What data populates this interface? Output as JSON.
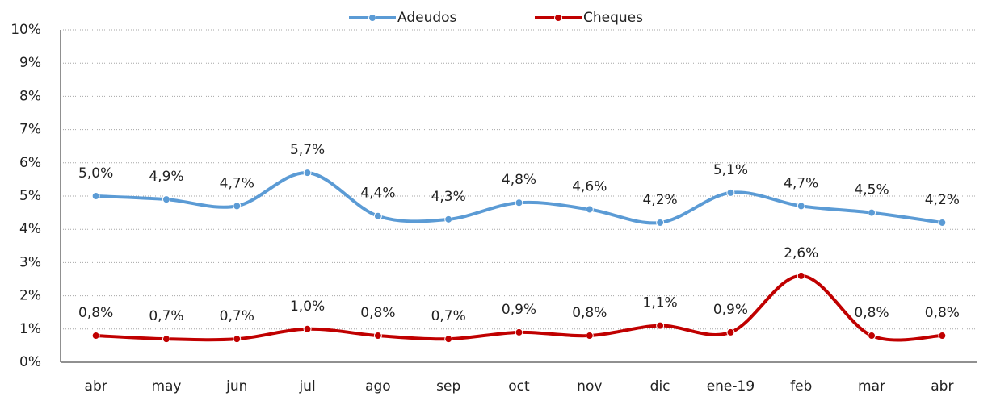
{
  "chart_data": {
    "type": "line",
    "categories": [
      "abr",
      "may",
      "jun",
      "jul",
      "ago",
      "sep",
      "oct",
      "nov",
      "dic",
      "ene-19",
      "feb",
      "mar",
      "abr"
    ],
    "series": [
      {
        "name": "Adeudos",
        "color": "#5b9bd5",
        "values": [
          5.0,
          4.9,
          4.7,
          5.7,
          4.4,
          4.3,
          4.8,
          4.6,
          4.2,
          5.1,
          4.7,
          4.5,
          4.2
        ],
        "value_labels": [
          "5,0%",
          "4,9%",
          "4,7%",
          "5,7%",
          "4,4%",
          "4,3%",
          "4,8%",
          "4,6%",
          "4,2%",
          "5,1%",
          "4,7%",
          "4,5%",
          "4,2%"
        ]
      },
      {
        "name": "Cheques",
        "color": "#c00000",
        "values": [
          0.8,
          0.7,
          0.7,
          1.0,
          0.8,
          0.7,
          0.9,
          0.8,
          1.1,
          0.9,
          2.6,
          0.8,
          0.8
        ],
        "value_labels": [
          "0,8%",
          "0,7%",
          "0,7%",
          "1,0%",
          "0,8%",
          "0,7%",
          "0,9%",
          "0,8%",
          "1,1%",
          "0,9%",
          "2,6%",
          "0,8%",
          "0,8%"
        ]
      }
    ],
    "ylim": [
      0,
      10
    ],
    "yticks": [
      {
        "value": 0,
        "label": "0%"
      },
      {
        "value": 1,
        "label": "1%"
      },
      {
        "value": 2,
        "label": "2%"
      },
      {
        "value": 3,
        "label": "3%"
      },
      {
        "value": 4,
        "label": "4%"
      },
      {
        "value": 5,
        "label": "5%"
      },
      {
        "value": 6,
        "label": "6%"
      },
      {
        "value": 7,
        "label": "7%"
      },
      {
        "value": 8,
        "label": "8%"
      },
      {
        "value": 9,
        "label": "9%"
      },
      {
        "value": 10,
        "label": "10%"
      }
    ],
    "grid": true,
    "smooth": true,
    "legend": "top"
  }
}
